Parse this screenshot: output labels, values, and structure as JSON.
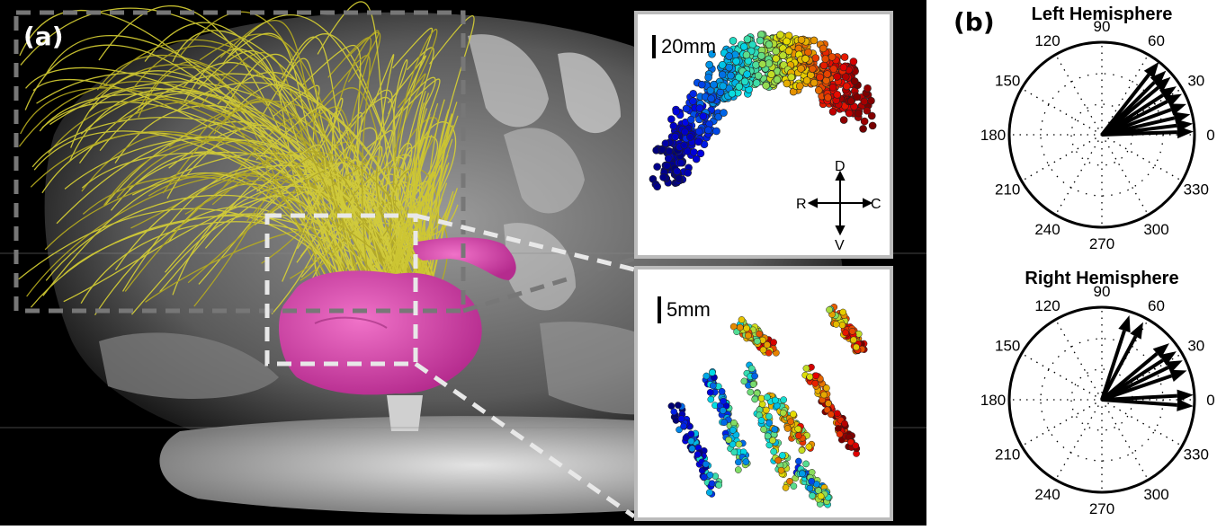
{
  "figure": {
    "panel_a_label": "(a)",
    "panel_b_label": "(b)",
    "inset_top_scale": "20mm",
    "inset_bottom_scale": "5mm",
    "orientation": {
      "dorsal": "D",
      "ventral": "V",
      "rostral": "R",
      "caudal": "C"
    },
    "colors": {
      "fibers": "#d4cc2a",
      "thalamus": "#d63aa8",
      "background": "#000000"
    }
  },
  "chart_data": [
    {
      "type": "polar",
      "title": "Left Hemisphere",
      "angle_ticks": [
        "0",
        "30",
        "60",
        "90",
        "120",
        "150",
        "180",
        "210",
        "240",
        "270",
        "300",
        "330"
      ],
      "arrows": [
        {
          "angle": 52,
          "r": 1.0
        },
        {
          "angle": 45,
          "r": 0.98
        },
        {
          "angle": 40,
          "r": 0.97
        },
        {
          "angle": 33,
          "r": 0.96
        },
        {
          "angle": 27,
          "r": 0.97
        },
        {
          "angle": 20,
          "r": 0.97
        },
        {
          "angle": 13,
          "r": 0.98
        },
        {
          "angle": 7,
          "r": 0.99
        },
        {
          "angle": 2,
          "r": 0.99
        }
      ]
    },
    {
      "type": "polar",
      "title": "Right Hemisphere",
      "angle_ticks": [
        "0",
        "30",
        "60",
        "90",
        "120",
        "150",
        "180",
        "210",
        "240",
        "270",
        "300",
        "330"
      ],
      "arrows": [
        {
          "angle": 72,
          "r": 0.96
        },
        {
          "angle": 62,
          "r": 0.95
        },
        {
          "angle": 40,
          "r": 0.95
        },
        {
          "angle": 33,
          "r": 0.96
        },
        {
          "angle": 26,
          "r": 0.97
        },
        {
          "angle": 19,
          "r": 0.97
        },
        {
          "angle": 3,
          "r": 0.99
        },
        {
          "angle": -4,
          "r": 0.99
        }
      ]
    }
  ]
}
